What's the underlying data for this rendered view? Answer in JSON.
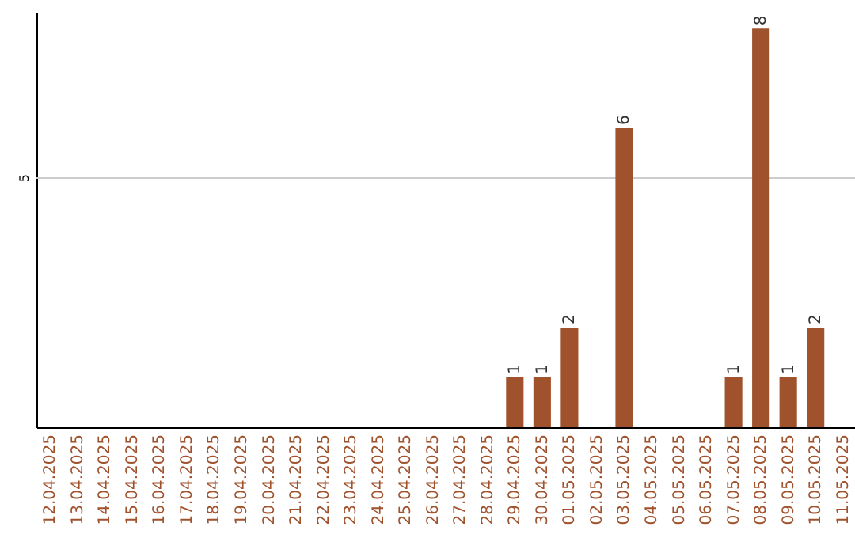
{
  "chart_data": {
    "type": "bar",
    "categories": [
      "12.04.2025",
      "13.04.2025",
      "14.04.2025",
      "15.04.2025",
      "16.04.2025",
      "17.04.2025",
      "18.04.2025",
      "19.04.2025",
      "20.04.2025",
      "21.04.2025",
      "22.04.2025",
      "23.04.2025",
      "24.04.2025",
      "25.04.2025",
      "26.04.2025",
      "27.04.2025",
      "28.04.2025",
      "29.04.2025",
      "30.04.2025",
      "01.05.2025",
      "02.05.2025",
      "03.05.2025",
      "04.05.2025",
      "05.05.2025",
      "06.05.2025",
      "07.05.2025",
      "08.05.2025",
      "09.05.2025",
      "10.05.2025",
      "11.05.2025"
    ],
    "values": [
      null,
      null,
      null,
      null,
      null,
      null,
      null,
      null,
      null,
      null,
      null,
      null,
      null,
      null,
      null,
      null,
      null,
      1,
      1,
      2,
      null,
      6,
      null,
      null,
      null,
      1,
      8,
      1,
      2,
      null
    ],
    "data_labels": true,
    "color": "#a0522d",
    "ref_lines": [
      {
        "axis": "y",
        "value": 5,
        "label": "5",
        "color": "#cccccc"
      }
    ]
  }
}
